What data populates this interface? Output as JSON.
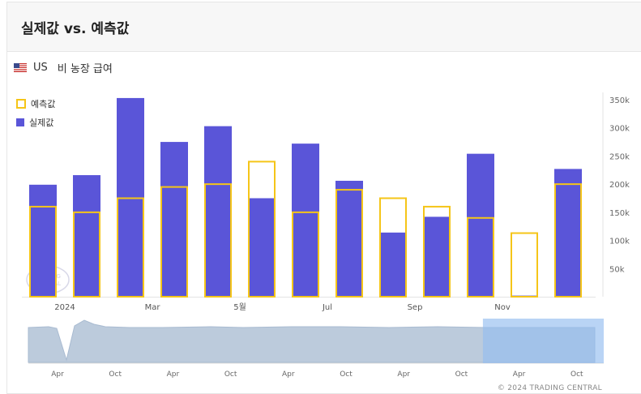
{
  "header": {
    "title": "실제값 vs. 예측값"
  },
  "indicator": {
    "country_code": "US",
    "name": "비 농장 급여"
  },
  "legend": {
    "forecast": "예측값",
    "actual": "실제값"
  },
  "colors": {
    "actual": "#5a55d8",
    "forecast": "#f5c518",
    "navigator_fill": "#bccbdc",
    "navigator_selection": "#93bdf0"
  },
  "watermark": "TRADING CENTRAL",
  "footer": "© 2024 TRADING CENTRAL",
  "chart_data": {
    "type": "bar",
    "series": [
      {
        "name": "예측값",
        "values": [
          160,
          150,
          175,
          195,
          200,
          240,
          150,
          190,
          175,
          160,
          140,
          113,
          200
        ]
      },
      {
        "name": "실제값",
        "values": [
          199,
          216,
          353,
          275,
          303,
          175,
          272,
          206,
          114,
          142,
          254,
          2,
          227
        ]
      }
    ],
    "yunit": "k",
    "yticks": [
      "50k",
      "100k",
      "150k",
      "200k",
      "250k",
      "300k",
      "350k"
    ],
    "yvalues": [
      50,
      100,
      150,
      200,
      250,
      300,
      350
    ],
    "ylim": [
      0,
      350
    ],
    "xticks": [
      {
        "label": "2024",
        "after_bar": 1
      },
      {
        "label": "Mar",
        "after_bar": 3
      },
      {
        "label": "5월",
        "after_bar": 5
      },
      {
        "label": "Jul",
        "after_bar": 7
      },
      {
        "label": "Sep",
        "after_bar": 9
      },
      {
        "label": "Nov",
        "after_bar": 11
      }
    ],
    "navigator": {
      "xticks": [
        "Apr",
        "Oct",
        "Apr",
        "Oct",
        "Apr",
        "Oct",
        "Apr",
        "Oct",
        "Apr",
        "Oct"
      ],
      "selection_start": 0.79
    },
    "grid": false,
    "legend_position": "top-left"
  }
}
